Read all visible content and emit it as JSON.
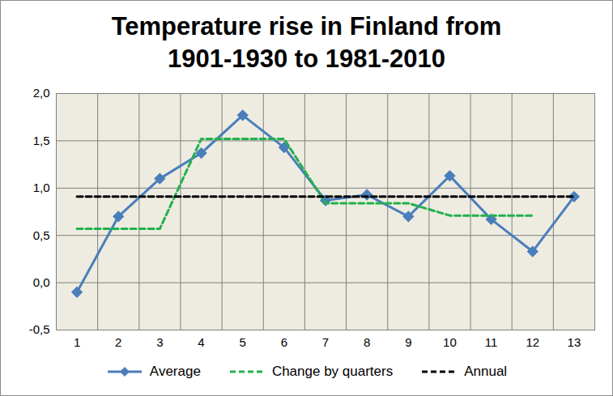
{
  "chart_data": {
    "type": "line",
    "title": "Temperature rise in Finland from 1901-1930 to 1981-2010",
    "categories": [
      "1",
      "2",
      "3",
      "4",
      "5",
      "6",
      "7",
      "8",
      "9",
      "10",
      "11",
      "12",
      "13"
    ],
    "series": [
      {
        "name": "Average",
        "color": "#4a7ebb",
        "marker": "diamond",
        "line_style": "solid",
        "values": [
          -0.1,
          0.7,
          1.1,
          1.37,
          1.77,
          1.43,
          0.87,
          0.93,
          0.7,
          1.13,
          0.67,
          0.33,
          0.91
        ]
      },
      {
        "name": "Change by quarters",
        "color": "#22b14c",
        "line_style": "dashed",
        "values": [
          0.57,
          0.57,
          0.57,
          1.52,
          1.52,
          1.52,
          0.84,
          0.84,
          0.84,
          0.71,
          0.71,
          0.71,
          null
        ]
      },
      {
        "name": "Annual",
        "color": "#000000",
        "line_style": "dashed",
        "values": [
          0.91,
          0.91,
          0.91,
          0.91,
          0.91,
          0.91,
          0.91,
          0.91,
          0.91,
          0.91,
          0.91,
          0.91,
          0.91
        ]
      }
    ],
    "ylim": [
      -0.5,
      2.0
    ],
    "yticks": [
      {
        "value": -0.5,
        "label": "-0,5"
      },
      {
        "value": 0,
        "label": "0,0"
      },
      {
        "value": 0.5,
        "label": "0,5"
      },
      {
        "value": 1.0,
        "label": "1,0"
      },
      {
        "value": 1.5,
        "label": "1,5"
      },
      {
        "value": 2.0,
        "label": "2,0"
      }
    ],
    "grid": true,
    "legend": "bottom"
  }
}
